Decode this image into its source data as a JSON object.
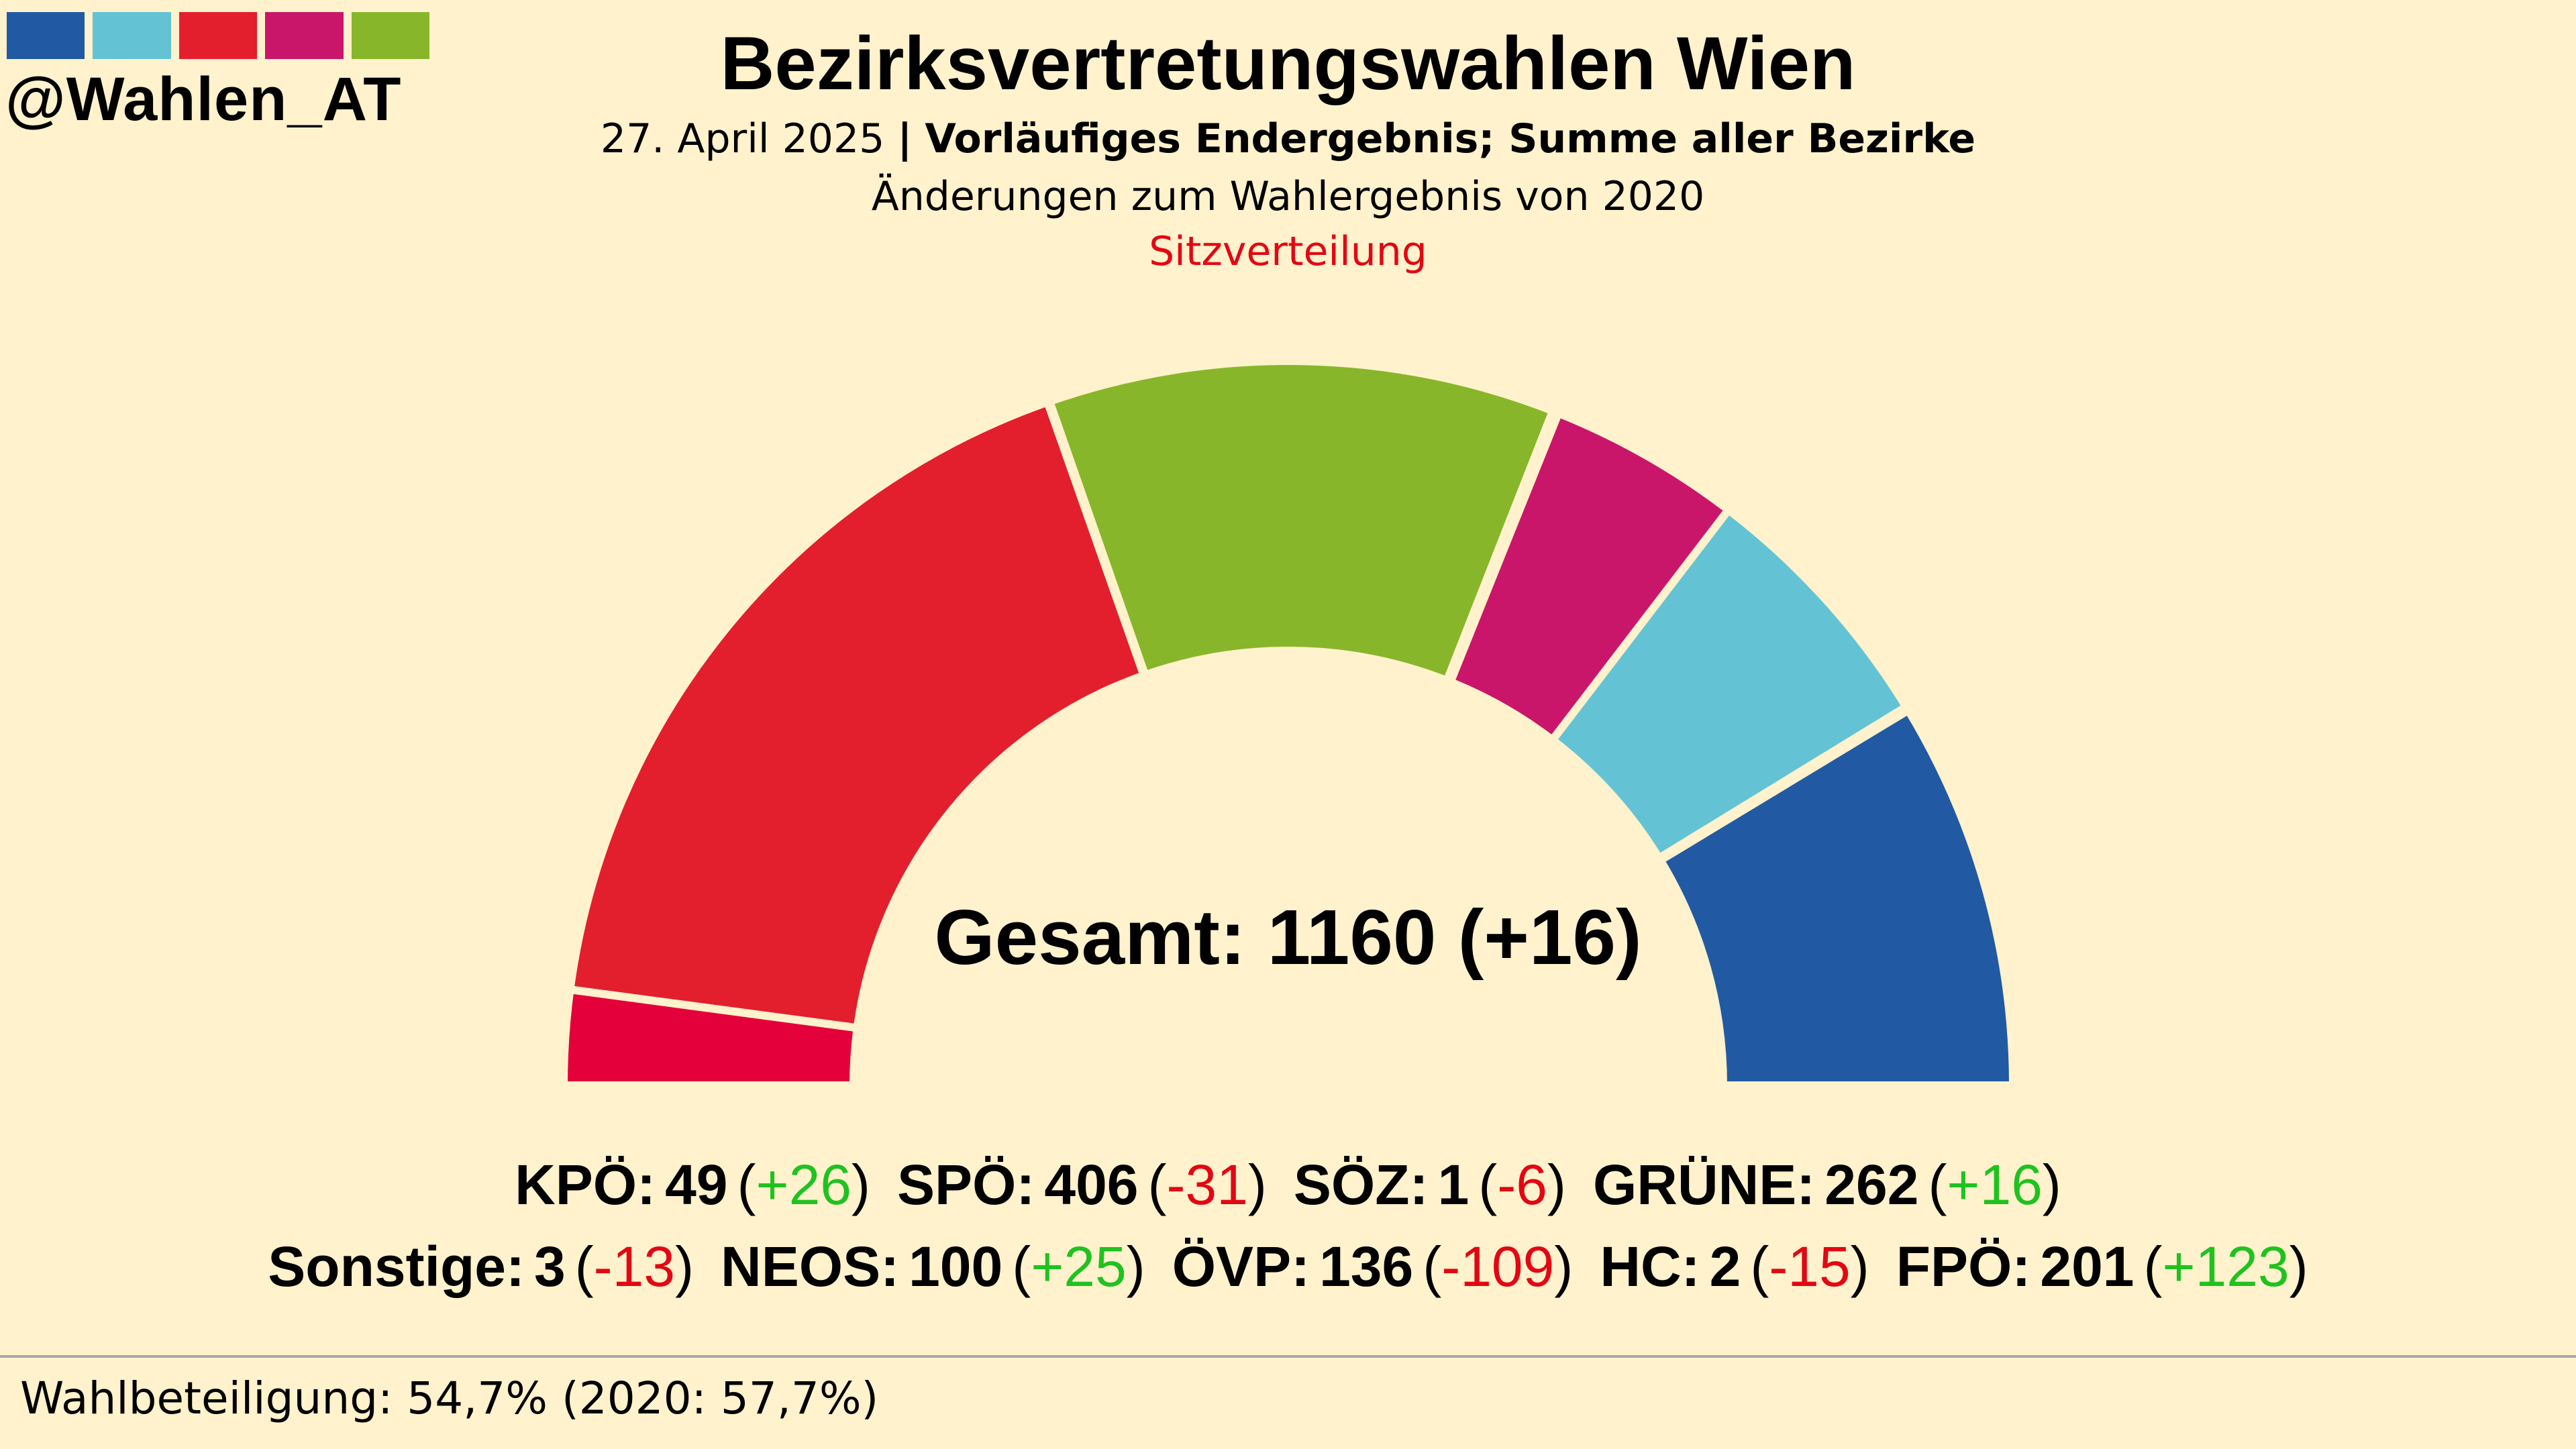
{
  "brand": {
    "handle": "@Wahlen_AT",
    "colors": [
      "#215aa3",
      "#63c3d5",
      "#e31e2d",
      "#c9166b",
      "#88b62a"
    ]
  },
  "header": {
    "title": "Bezirksvertretungswahlen Wien",
    "date": "27. April 2025",
    "separator": "|",
    "status": "Vorläufiges Endergebnis; Summe aller Bezirke",
    "changes_note": "Änderungen zum Wahlergebnis von 2020",
    "chart_type_label": "Sitzverteilung"
  },
  "chart_data": {
    "type": "pie",
    "style": "hemicycle",
    "total_label": "Gesamt: 1160 (+16)",
    "total": 1160,
    "total_change": 16,
    "slices": [
      {
        "name": "KPÖ",
        "value": 49,
        "change": "+26",
        "color": "#e4003a"
      },
      {
        "name": "SPÖ",
        "value": 406,
        "change": "-31",
        "color": "#e31e2d"
      },
      {
        "name": "SÖZ",
        "value": 1,
        "change": "-6",
        "color": "#e31e2d"
      },
      {
        "name": "GRÜNE",
        "value": 262,
        "change": "+16",
        "color": "#88b62a"
      },
      {
        "name": "Sonstige",
        "value": 3,
        "change": "-13",
        "color": "#c9166b"
      },
      {
        "name": "NEOS",
        "value": 100,
        "change": "+25",
        "color": "#c9166b"
      },
      {
        "name": "ÖVP",
        "value": 136,
        "change": "-109",
        "color": "#63c3d5"
      },
      {
        "name": "HC",
        "value": 2,
        "change": "-15",
        "color": "#215aa3"
      },
      {
        "name": "FPÖ",
        "value": 201,
        "change": "+123",
        "color": "#215aa3"
      }
    ],
    "legend_rows": [
      [
        {
          "party": "KPÖ:",
          "seats": "49",
          "delta": "+26",
          "dir": "pos"
        },
        {
          "party": "SPÖ:",
          "seats": "406",
          "delta": "-31",
          "dir": "neg"
        },
        {
          "party": "SÖZ:",
          "seats": "1",
          "delta": "-6",
          "dir": "neg"
        },
        {
          "party": "GRÜNE:",
          "seats": "262",
          "delta": "+16",
          "dir": "pos"
        }
      ],
      [
        {
          "party": "Sonstige:",
          "seats": "3",
          "delta": "-13",
          "dir": "neg"
        },
        {
          "party": "NEOS:",
          "seats": "100",
          "delta": "+25",
          "dir": "pos"
        },
        {
          "party": "ÖVP:",
          "seats": "136",
          "delta": "-109",
          "dir": "neg"
        },
        {
          "party": "HC:",
          "seats": "2",
          "delta": "-15",
          "dir": "neg"
        },
        {
          "party": "FPÖ:",
          "seats": "201",
          "delta": "+123",
          "dir": "pos"
        }
      ]
    ]
  },
  "footer": {
    "turnout": "Wahlbeteiligung: 54,7% (2020: 57,7%)"
  }
}
